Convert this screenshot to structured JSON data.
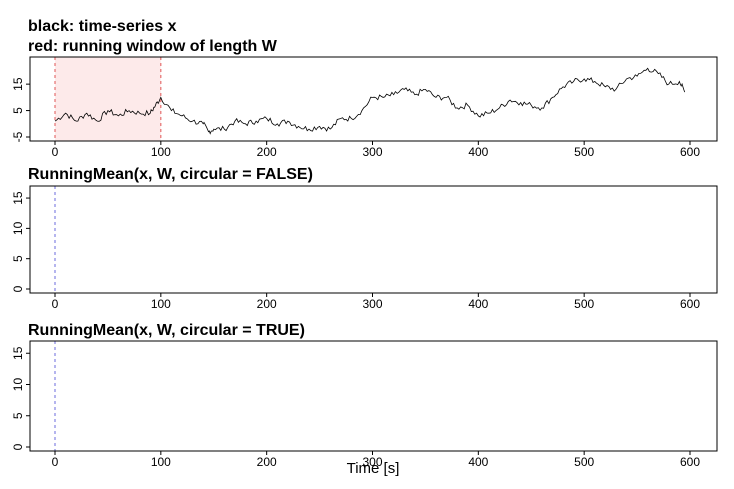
{
  "xlabel": "Time [s]",
  "chart_data": [
    {
      "type": "line",
      "title": "black: time-series x",
      "subtitle": "red: running window of length W",
      "xlim": [
        0,
        600
      ],
      "ylim": [
        -5,
        23
      ],
      "x_ticks": [
        0,
        100,
        200,
        300,
        400,
        500,
        600
      ],
      "y_ticks": [
        -5,
        5,
        15
      ],
      "window": {
        "start": 0,
        "end": 100,
        "fill": "#fdeaea",
        "line_color": "#e05555"
      },
      "series": [
        {
          "color": "#000000",
          "x": [
            0,
            10,
            20,
            30,
            40,
            50,
            60,
            70,
            80,
            90,
            95,
            100,
            110,
            120,
            130,
            140,
            145,
            150,
            160,
            170,
            180,
            190,
            200,
            210,
            220,
            230,
            240,
            250,
            260,
            270,
            280,
            290,
            300,
            310,
            320,
            330,
            340,
            350,
            360,
            370,
            380,
            390,
            400,
            410,
            420,
            430,
            440,
            450,
            460,
            470,
            480,
            490,
            500,
            510,
            520,
            530,
            540,
            550,
            560,
            570,
            580,
            590,
            595
          ],
          "y": [
            1,
            4,
            1,
            4,
            1,
            5,
            3,
            5,
            4,
            4,
            7,
            10,
            5,
            3,
            1,
            0,
            -3,
            -2,
            -2,
            1,
            0,
            1,
            2,
            0,
            1,
            -1,
            -2,
            -1,
            -2,
            2,
            2,
            5,
            10,
            10,
            11,
            13,
            11,
            13,
            10,
            10,
            6,
            7,
            3,
            4,
            6,
            9,
            8,
            7,
            6,
            10,
            14,
            16,
            17,
            16,
            14,
            13,
            17,
            18,
            21,
            19,
            15,
            16,
            12
          ]
        }
      ]
    },
    {
      "type": "line",
      "title": "RunningMean(x, W, circular = FALSE)",
      "xlim": [
        0,
        600
      ],
      "ylim": [
        0,
        16
      ],
      "x_ticks": [
        0,
        100,
        200,
        300,
        400,
        500,
        600
      ],
      "y_ticks": [
        0,
        5,
        10,
        15
      ],
      "marker_line": {
        "x": 0,
        "color": "#6b6bdd"
      },
      "series": []
    },
    {
      "type": "line",
      "title": "RunningMean(x, W, circular = TRUE)",
      "xlim": [
        0,
        600
      ],
      "ylim": [
        0,
        16
      ],
      "x_ticks": [
        0,
        100,
        200,
        300,
        400,
        500,
        600
      ],
      "y_ticks": [
        0,
        5,
        10,
        15
      ],
      "marker_line": {
        "x": 0,
        "color": "#6b6bdd"
      },
      "series": []
    }
  ]
}
